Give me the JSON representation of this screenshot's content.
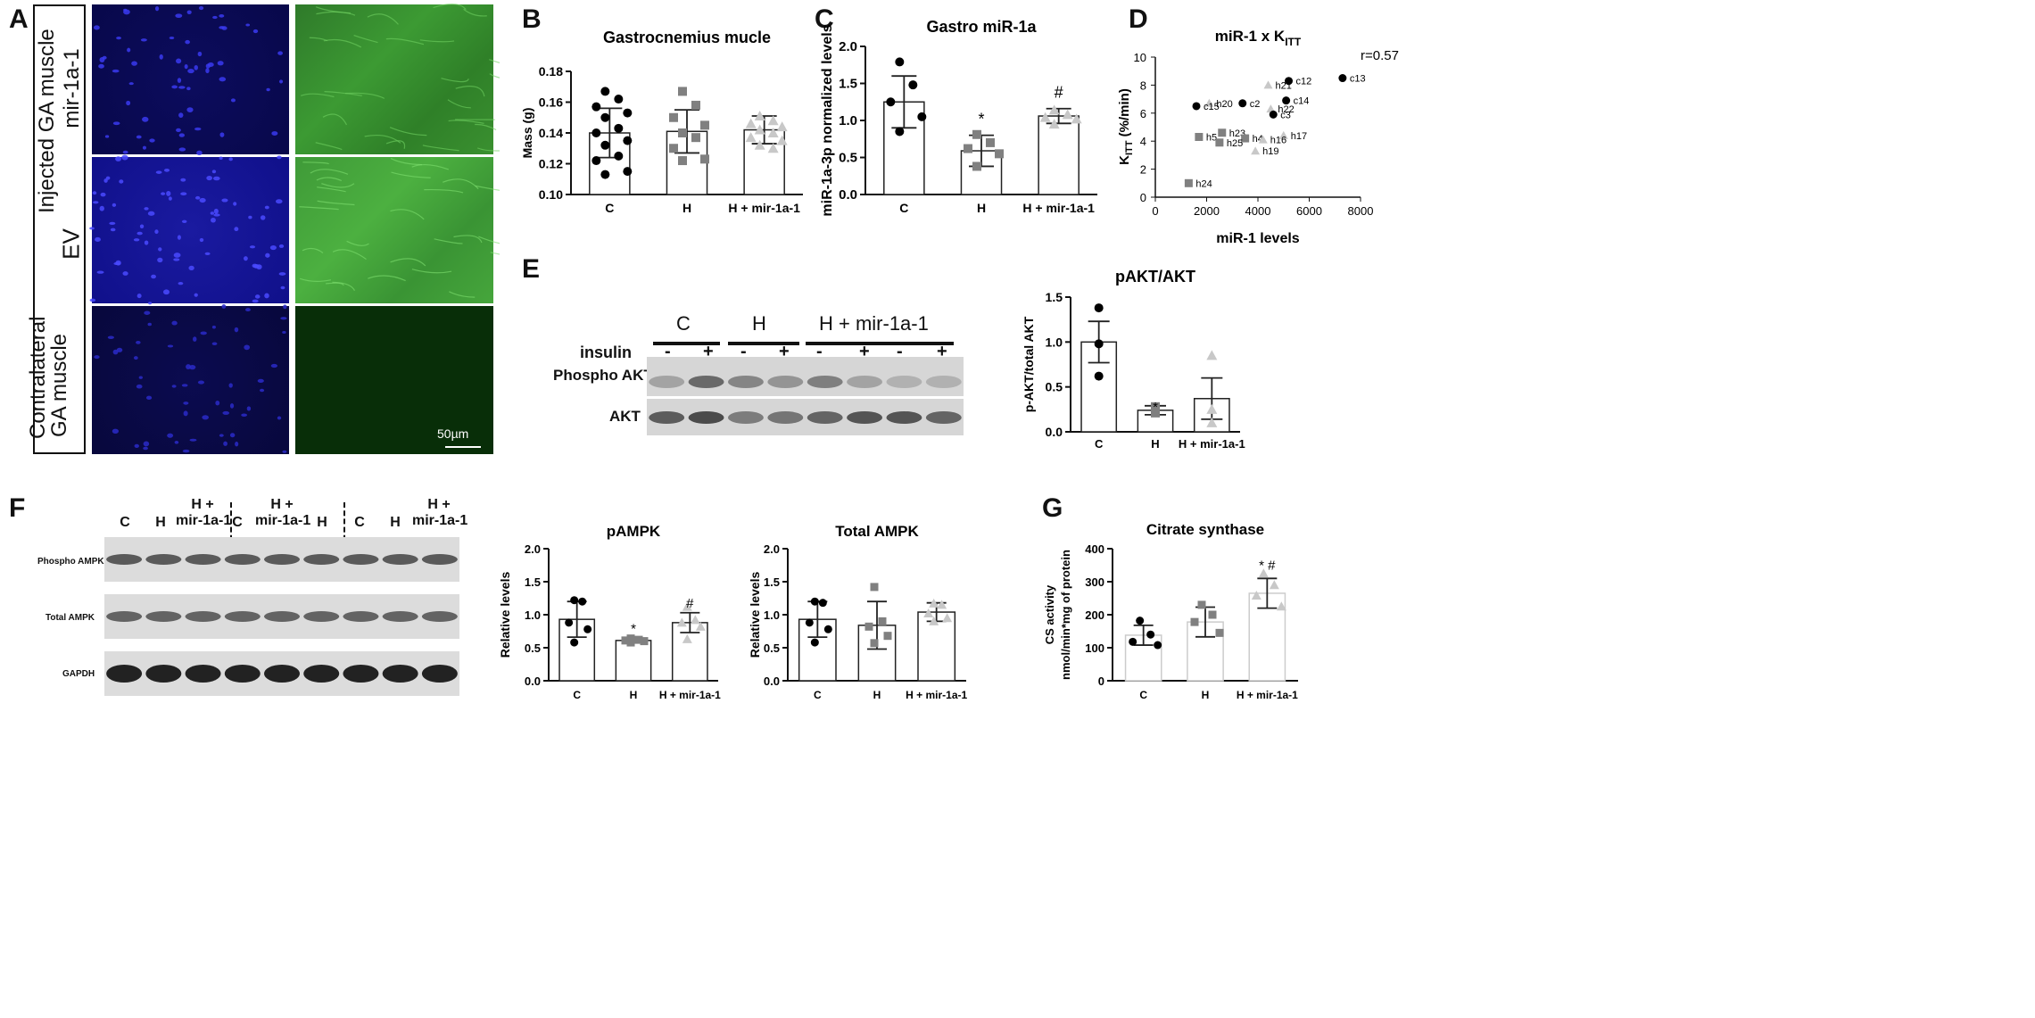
{
  "panels": {
    "A": {
      "letter": "A",
      "row_labels": [
        "Injected GA muscle",
        "mir-1a-1",
        "EV",
        "Contralateral\nGA muscle"
      ],
      "scale_bar": "50µm"
    },
    "B": {
      "letter": "B"
    },
    "C": {
      "letter": "C"
    },
    "D": {
      "letter": "D"
    },
    "E": {
      "letter": "E",
      "groups": [
        "C",
        "H",
        "H + mir-1a-1"
      ],
      "insulin_label": "insulin",
      "signs": [
        "-",
        "+",
        "-",
        "+",
        "-",
        "+",
        "-",
        "+"
      ],
      "rows": [
        "Phospho AKT",
        "AKT"
      ]
    },
    "F": {
      "letter": "F",
      "lane_labels": [
        "C",
        "H",
        "H +\nmir-1a-1",
        "C",
        "H +\nmir-1a-1",
        "H",
        "C",
        "H",
        "H +\nmir-1a-1"
      ],
      "rows": [
        "Phospho AMPK",
        "Total AMPK",
        "GAPDH"
      ]
    },
    "G": {
      "letter": "G"
    }
  },
  "chart_data": [
    {
      "id": "B",
      "type": "bar",
      "title": "Gastrocnemius mucle",
      "ylabel": "Mass (g)",
      "xlabel": "",
      "ylim": [
        0.1,
        0.18
      ],
      "yticks": [
        "0.10",
        "0.12",
        "0.14",
        "0.16",
        "0.18"
      ],
      "categories": [
        "C",
        "H",
        "H + mir-1a-1"
      ],
      "values": [
        0.14,
        0.141,
        0.142
      ],
      "errors": [
        0.016,
        0.014,
        0.009
      ],
      "points": [
        [
          0.167,
          0.162,
          0.157,
          0.153,
          0.15,
          0.143,
          0.14,
          0.135,
          0.132,
          0.125,
          0.122,
          0.115,
          0.113
        ],
        [
          0.167,
          0.158,
          0.15,
          0.145,
          0.14,
          0.137,
          0.13,
          0.123,
          0.122
        ],
        [
          0.151,
          0.148,
          0.146,
          0.144,
          0.142,
          0.14,
          0.137,
          0.135,
          0.132,
          0.13
        ]
      ],
      "annotations": [
        "",
        "",
        ""
      ]
    },
    {
      "id": "C",
      "type": "bar",
      "title": "Gastro miR-1a",
      "ylabel": "miR-1a-3p normalized levels",
      "xlabel": "",
      "ylim": [
        0,
        2.0
      ],
      "yticks": [
        "0.0",
        "0.5",
        "1.0",
        "1.5",
        "2.0"
      ],
      "categories": [
        "C",
        "H",
        "H + mir-1a-1"
      ],
      "values": [
        1.25,
        0.59,
        1.06
      ],
      "errors": [
        0.35,
        0.21,
        0.1
      ],
      "points": [
        [
          1.79,
          1.48,
          1.25,
          1.05,
          0.85
        ],
        [
          0.81,
          0.7,
          0.62,
          0.55,
          0.38
        ],
        [
          1.14,
          1.08,
          1.04,
          1.02,
          0.95
        ]
      ],
      "annotations": [
        "",
        "*",
        "#"
      ]
    },
    {
      "id": "D",
      "type": "scatter",
      "title": "miR-1 x K",
      "title_sub": "ITT",
      "ylabel": "K",
      "ylabel_sub": "ITT",
      "ylabel_rest": " (%/min)",
      "xlabel": "miR-1 levels",
      "xlim": [
        0,
        8000
      ],
      "ylim": [
        0,
        10
      ],
      "xticks": [
        "0",
        "2000",
        "4000",
        "6000",
        "8000"
      ],
      "yticks": [
        "0",
        "2",
        "4",
        "6",
        "8",
        "10"
      ],
      "annotation": "r=0.57",
      "points": [
        {
          "label": "c13",
          "x": 7300,
          "y": 8.5,
          "group": "C"
        },
        {
          "label": "c12",
          "x": 5200,
          "y": 8.3,
          "group": "C"
        },
        {
          "label": "h21",
          "x": 4400,
          "y": 8.0,
          "group": "H+mir"
        },
        {
          "label": "c14",
          "x": 5100,
          "y": 6.9,
          "group": "C"
        },
        {
          "label": "h20",
          "x": 2100,
          "y": 6.7,
          "group": "H+mir"
        },
        {
          "label": "c2",
          "x": 3400,
          "y": 6.7,
          "group": "C"
        },
        {
          "label": "c15",
          "x": 1600,
          "y": 6.5,
          "group": "C"
        },
        {
          "label": "h22",
          "x": 4500,
          "y": 6.3,
          "group": "H+mir"
        },
        {
          "label": "c3",
          "x": 4600,
          "y": 5.9,
          "group": "C"
        },
        {
          "label": "h23",
          "x": 2600,
          "y": 4.6,
          "group": "H"
        },
        {
          "label": "h17",
          "x": 5000,
          "y": 4.4,
          "group": "H+mir"
        },
        {
          "label": "h5",
          "x": 1700,
          "y": 4.3,
          "group": "H"
        },
        {
          "label": "h4",
          "x": 3500,
          "y": 4.2,
          "group": "H"
        },
        {
          "label": "h16",
          "x": 4200,
          "y": 4.1,
          "group": "H+mir"
        },
        {
          "label": "h25",
          "x": 2500,
          "y": 3.9,
          "group": "H"
        },
        {
          "label": "h19",
          "x": 3900,
          "y": 3.3,
          "group": "H+mir"
        },
        {
          "label": "h24",
          "x": 1300,
          "y": 1.0,
          "group": "H"
        }
      ]
    },
    {
      "id": "E",
      "type": "bar",
      "title": "pAKT/AKT",
      "ylabel": "p-AKT/total AKT",
      "xlabel": "",
      "ylim": [
        0,
        1.5
      ],
      "yticks": [
        "0.0",
        "0.5",
        "1.0",
        "1.5"
      ],
      "categories": [
        "C",
        "H",
        "H + mir-1a-1"
      ],
      "values": [
        1.0,
        0.24,
        0.37
      ],
      "errors": [
        0.23,
        0.05,
        0.23
      ],
      "points": [
        [
          1.38,
          0.98,
          0.62
        ],
        [
          0.28,
          0.23,
          0.21
        ],
        [
          0.85,
          0.25,
          0.1
        ]
      ],
      "annotations": [
        "",
        "*",
        ""
      ]
    },
    {
      "id": "F1",
      "type": "bar",
      "title": "pAMPK",
      "ylabel": "Relative levels",
      "xlabel": "",
      "ylim": [
        0,
        2.0
      ],
      "yticks": [
        "0.0",
        "0.5",
        "1.0",
        "1.5",
        "2.0"
      ],
      "categories": [
        "C",
        "H",
        "H + mir-1a-1"
      ],
      "values": [
        0.93,
        0.61,
        0.88
      ],
      "errors": [
        0.27,
        0.03,
        0.15
      ],
      "points": [
        [
          1.22,
          1.2,
          0.88,
          0.78,
          0.58
        ],
        [
          0.64,
          0.62,
          0.61,
          0.6,
          0.58
        ],
        [
          1.12,
          0.92,
          0.88,
          0.82,
          0.63
        ]
      ],
      "annotations": [
        "",
        "*",
        "#"
      ]
    },
    {
      "id": "F2",
      "type": "bar",
      "title": "Total AMPK",
      "ylabel": "Relative levels",
      "xlabel": "",
      "ylim": [
        0,
        2.0
      ],
      "yticks": [
        "0.0",
        "0.5",
        "1.0",
        "1.5",
        "2.0"
      ],
      "categories": [
        "C",
        "H",
        "H + mir-1a-1"
      ],
      "values": [
        0.93,
        0.84,
        1.04
      ],
      "errors": [
        0.27,
        0.36,
        0.14
      ],
      "points": [
        [
          1.2,
          1.18,
          0.88,
          0.78,
          0.58
        ],
        [
          1.42,
          0.9,
          0.82,
          0.68,
          0.57
        ],
        [
          1.17,
          1.15,
          1.02,
          0.95,
          0.9
        ]
      ],
      "annotations": [
        "",
        "",
        ""
      ]
    },
    {
      "id": "G",
      "type": "bar",
      "title": "Citrate synthase",
      "ylabel": "CS activity",
      "ylabel2": "nmol/min*mg of protein",
      "xlabel": "",
      "ylim": [
        0,
        400
      ],
      "yticks": [
        "0",
        "100",
        "200",
        "300",
        "400"
      ],
      "categories": [
        "C",
        "H",
        "H + mir-1a-1"
      ],
      "values": [
        138,
        178,
        265
      ],
      "errors": [
        30,
        45,
        45
      ],
      "points": [
        [
          182,
          140,
          118,
          108
        ],
        [
          230,
          200,
          178,
          145
        ],
        [
          325,
          290,
          258,
          225
        ]
      ],
      "annotations": [
        "",
        "",
        "* #"
      ]
    }
  ]
}
